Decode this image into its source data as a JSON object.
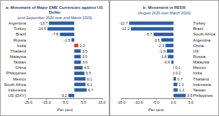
{
  "chart_data": [
    {
      "type": "bar",
      "orientation": "horizontal",
      "title": "a: Movement of Major EME Currencies against US Dollar",
      "subtitle": "(end-September 2020 over end-March 2020)",
      "xlabel": "Per cent",
      "categories": [
        "Argentina",
        "Turkey",
        "Brazil",
        "Russia",
        "India",
        "Thailand",
        "Malaysia",
        "Taiwan",
        "China",
        "Philippines",
        "Mexico",
        "South Africa",
        "Indonesia",
        "US (DXY)"
      ],
      "values": [
        -13.7,
        -14.5,
        -7.8,
        -1.5,
        2.2,
        3.5,
        3.5,
        3.6,
        4.5,
        5.5,
        6.1,
        6.1,
        6.7,
        -3.2
      ],
      "colors": [
        "#2f5f9e",
        "#2f5f9e",
        "#2f5f9e",
        "#2f5f9e",
        "#e0342b",
        "#2f5f9e",
        "#2f5f9e",
        "#2f5f9e",
        "#2f5f9e",
        "#2f5f9e",
        "#2f5f9e",
        "#2f5f9e",
        "#2f5f9e",
        "#2f5f9e"
      ],
      "xlim": [
        -25,
        15
      ],
      "xticks": [
        {
          "value": -25,
          "label": "-25.0"
        },
        {
          "value": -15,
          "label": "-15.0"
        },
        {
          "value": -5,
          "label": "-5.0"
        },
        {
          "value": 5,
          "label": "5.0"
        },
        {
          "value": 15,
          "label": "15.0"
        }
      ],
      "data_labels": true,
      "grid": false
    },
    {
      "type": "bar",
      "orientation": "horizontal",
      "title": "b: Movement in REER",
      "subtitle": "(August 2020 over March 2020)",
      "xlabel": "Per cent",
      "categories": [
        "Turkey",
        "Brazil",
        "South Africa",
        "Argentina",
        "China",
        "US",
        "Russia",
        "Malaysia",
        "Mexico",
        "India",
        "Thailand",
        "Indonesia",
        "Taiwan",
        "Philippines"
      ],
      "values": [
        -12.7,
        -12.2,
        -5.7,
        -3.5,
        -2.3,
        -1.9,
        -1.6,
        -0.6,
        0.1,
        0.2,
        0.7,
        1.1,
        1.2,
        3.5
      ],
      "colors": [
        "#2f5f9e",
        "#2f5f9e",
        "#2f5f9e",
        "#2f5f9e",
        "#2f5f9e",
        "#2f5f9e",
        "#2f5f9e",
        "#2f5f9e",
        "#2f5f9e",
        "#e0342b",
        "#2f5f9e",
        "#2f5f9e",
        "#2f5f9e",
        "#2f5f9e"
      ],
      "xlim": [
        -15,
        5
      ],
      "xticks": [
        {
          "value": -15,
          "label": "-15.0"
        },
        {
          "value": -10,
          "label": "-10.0"
        },
        {
          "value": -5,
          "label": "-5.0"
        },
        {
          "value": 0,
          "label": "0.0"
        },
        {
          "value": 5,
          "label": "5.0"
        }
      ],
      "data_labels": true,
      "grid": false
    }
  ]
}
